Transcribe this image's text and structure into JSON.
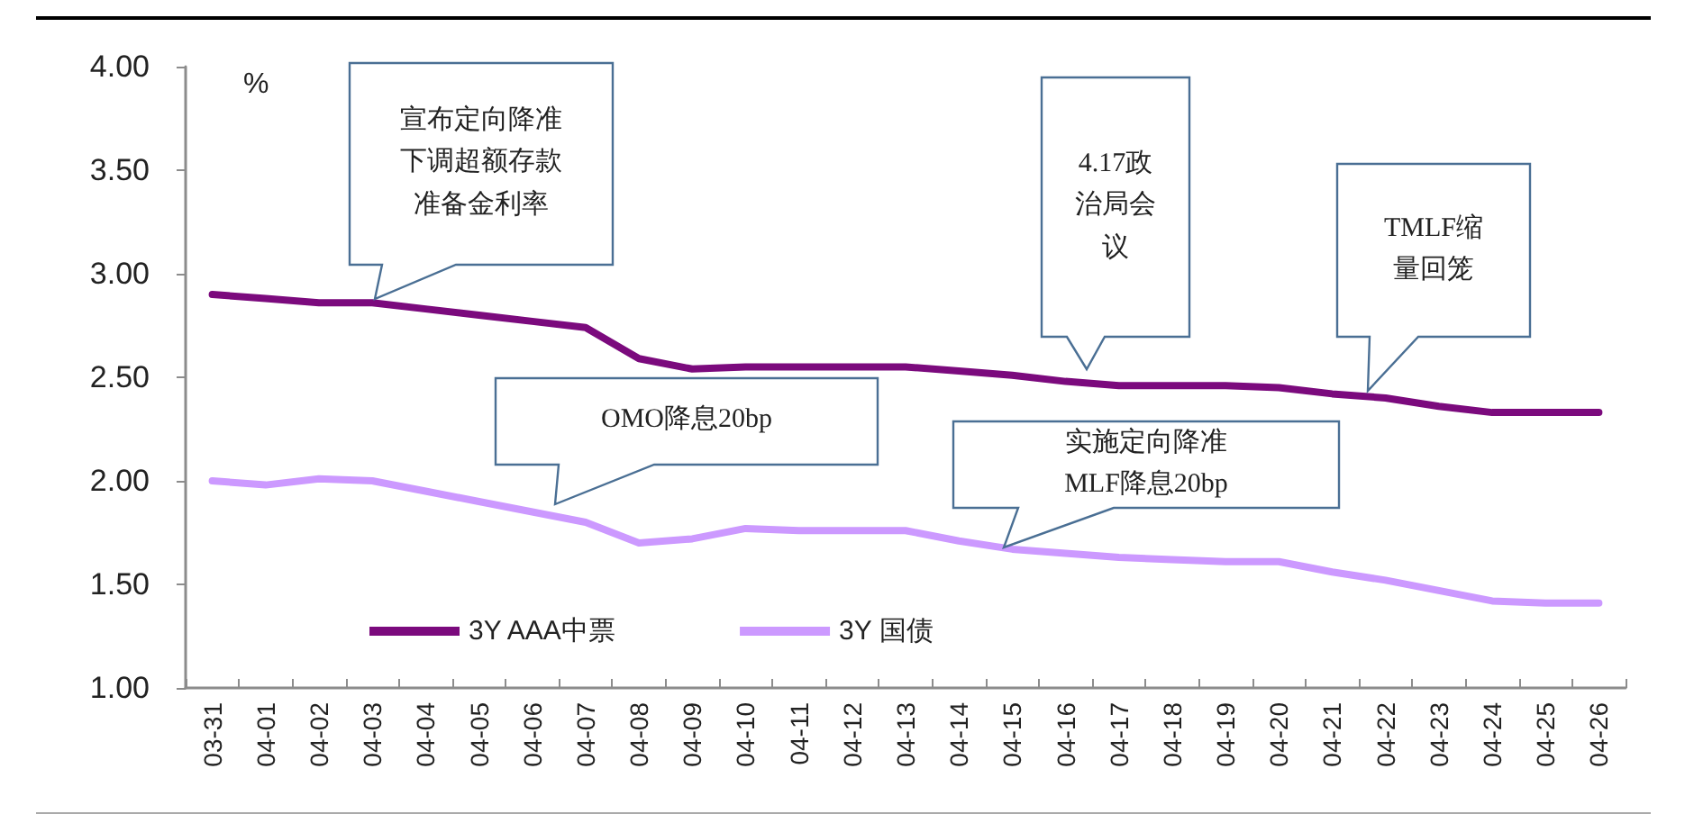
{
  "chart_data": {
    "type": "line",
    "ylabel": "%",
    "categories": [
      "03-31",
      "04-01",
      "04-02",
      "04-03",
      "04-04",
      "04-05",
      "04-06",
      "04-07",
      "04-08",
      "04-09",
      "04-10",
      "04-11",
      "04-12",
      "04-13",
      "04-14",
      "04-15",
      "04-16",
      "04-17",
      "04-18",
      "04-19",
      "04-20",
      "04-21",
      "04-22",
      "04-23",
      "04-24",
      "04-25",
      "04-26"
    ],
    "series": [
      {
        "name": "3Y AAA中票",
        "color": "#7b0a7d",
        "values": [
          2.9,
          2.88,
          2.86,
          2.86,
          2.83,
          2.8,
          2.77,
          2.74,
          2.59,
          2.54,
          2.55,
          2.55,
          2.55,
          2.55,
          2.53,
          2.51,
          2.48,
          2.46,
          2.46,
          2.46,
          2.45,
          2.42,
          2.4,
          2.36,
          2.33,
          2.33,
          2.33
        ]
      },
      {
        "name": "3Y 国债",
        "color": "#cc99ff",
        "values": [
          2.0,
          1.98,
          2.01,
          2.0,
          1.95,
          1.9,
          1.85,
          1.8,
          1.7,
          1.72,
          1.77,
          1.76,
          1.76,
          1.76,
          1.71,
          1.67,
          1.65,
          1.63,
          1.62,
          1.61,
          1.61,
          1.56,
          1.52,
          1.47,
          1.42,
          1.41,
          1.41
        ]
      }
    ],
    "ylim": [
      1,
      4
    ],
    "yticks": [
      {
        "value": 1,
        "label": "1.00"
      },
      {
        "value": 1.5,
        "label": "1.50"
      },
      {
        "value": 2,
        "label": "2.00"
      },
      {
        "value": 2.5,
        "label": "2.50"
      },
      {
        "value": 3,
        "label": "3.00"
      },
      {
        "value": 3.5,
        "label": "3.50"
      },
      {
        "value": 4,
        "label": "4.00"
      }
    ],
    "grid": false,
    "legend": "bottom left",
    "marker": "none",
    "line_style": "solid",
    "annotations": [
      "宣布定向降准下调超额存款准备金利率",
      "OMO降息20bp",
      "4.17政治局会议",
      "TMLF缩量回笼",
      "实施定向降准MLF降息20bp"
    ]
  }
}
